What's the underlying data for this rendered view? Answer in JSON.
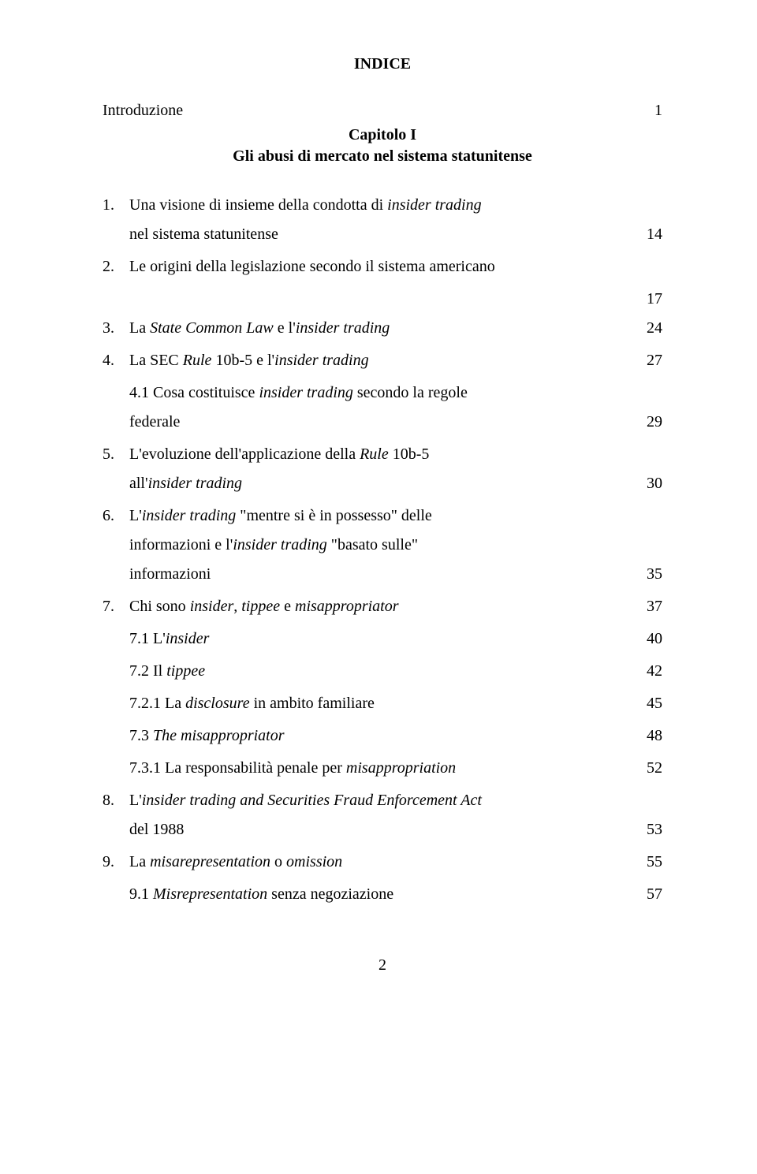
{
  "title": "INDICE",
  "intro": {
    "label": "Introduzione",
    "page": "1"
  },
  "chapter": {
    "heading": "Capitolo I",
    "title": "Gli abusi di mercato nel sistema statunitense"
  },
  "standalone_page_after_2": "17",
  "items": [
    {
      "num": "1.",
      "lines": [
        {
          "html": "Una visione di insieme della condotta di <em>insider trading</em>",
          "page": ""
        },
        {
          "html": "nel sistema statunitense",
          "page": "14"
        }
      ]
    },
    {
      "num": "2.",
      "lines": [
        {
          "html": "Le origini della legislazione secondo il sistema americano",
          "page": ""
        }
      ]
    },
    {
      "num": "3.",
      "lines": [
        {
          "html": "La <em>State Common Law</em> e l'<em>insider trading</em>",
          "page": "24"
        }
      ]
    },
    {
      "num": "4.",
      "lines": [
        {
          "html": "La SEC <em>Rule</em> 10b-5 e l'<em>insider trading</em>",
          "page": "27"
        }
      ],
      "subs": [
        {
          "lines": [
            {
              "html": "4.1 Cosa costituisce <em>insider trading</em> secondo la regole",
              "page": ""
            },
            {
              "html": "federale",
              "page": "29"
            }
          ]
        }
      ]
    },
    {
      "num": "5.",
      "lines": [
        {
          "html": "L'evoluzione dell'applicazione della <em>Rule</em> 10b-5",
          "page": ""
        },
        {
          "html": "all'<em>insider trading</em>",
          "page": "30"
        }
      ]
    },
    {
      "num": "6.",
      "lines": [
        {
          "html": "L'<em>insider trading</em> \"mentre si è in possesso\" delle",
          "page": ""
        },
        {
          "html": "informazioni e l'<em>insider trading</em> \"basato sulle\"",
          "page": ""
        },
        {
          "html": "informazioni",
          "page": "35"
        }
      ]
    },
    {
      "num": "7.",
      "lines": [
        {
          "html": "Chi sono <em>insider</em>, <em>tippee</em> e <em>misappropriator</em>",
          "page": "37"
        }
      ],
      "subs": [
        {
          "lines": [
            {
              "html": "7.1 L'<em>insider</em>",
              "page": "40"
            }
          ]
        },
        {
          "lines": [
            {
              "html": "7.2 Il <em>tippee</em>",
              "page": "42"
            }
          ]
        },
        {
          "lines": [
            {
              "html": "7.2.1 La <em>disclosure</em> in ambito familiare",
              "page": "45"
            }
          ]
        },
        {
          "lines": [
            {
              "html": "7.3 <em>The misappropriator</em>",
              "page": "48"
            }
          ]
        },
        {
          "lines": [
            {
              "html": "7.3.1 La responsabilità penale per <em>misappropriation</em>",
              "page": "52"
            }
          ]
        }
      ]
    },
    {
      "num": "8.",
      "lines": [
        {
          "html": "L'<em>insider trading and Securities Fraud Enforcement Act</em>",
          "page": ""
        },
        {
          "html": "del 1988",
          "page": "53"
        }
      ]
    },
    {
      "num": "9.",
      "lines": [
        {
          "html": "La <em>misarepresentation</em> o <em>omission</em>",
          "page": "55"
        }
      ],
      "subs": [
        {
          "lines": [
            {
              "html": "9.1 <em>Misrepresentation</em> senza negoziazione",
              "page": "57"
            }
          ]
        }
      ]
    }
  ],
  "page_number": "2"
}
